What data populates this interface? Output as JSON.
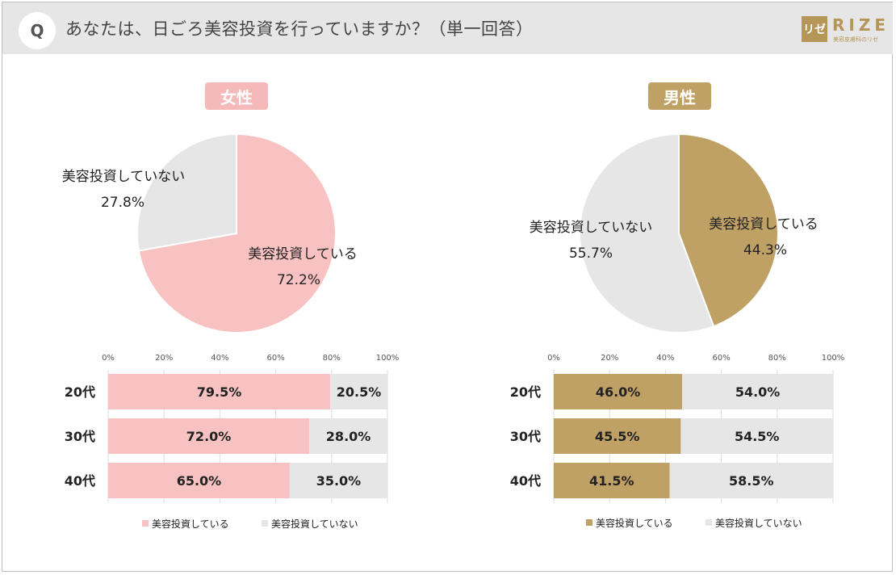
{
  "header": {
    "q_mark": "Q",
    "question": "あなたは、日ごろ美容投資を行っていますか？（単一回答）",
    "logo_mark": "リゼ",
    "logo_text": "RIZE",
    "logo_sub": "美容皮膚科のリゼ"
  },
  "colors": {
    "female_accent": "#f4b9b8",
    "female_pie": "#f7c2c1",
    "male_accent": "#bfa165",
    "not_investing": "#e6e6e6"
  },
  "chart_data": [
    {
      "id": "female_pie",
      "type": "pie",
      "title": "女性",
      "categories": [
        "美容投資している",
        "美容投資していない"
      ],
      "values": [
        72.2,
        27.8
      ],
      "value_labels": [
        "72.2%",
        "27.8%"
      ]
    },
    {
      "id": "male_pie",
      "type": "pie",
      "title": "男性",
      "categories": [
        "美容投資している",
        "美容投資していない"
      ],
      "values": [
        44.3,
        55.7
      ],
      "value_labels": [
        "44.3%",
        "55.7%"
      ]
    },
    {
      "id": "female_bar",
      "type": "bar",
      "stacked": true,
      "orientation": "horizontal",
      "categories": [
        "20代",
        "30代",
        "40代"
      ],
      "series": [
        {
          "name": "美容投資している",
          "values": [
            79.5,
            72.0,
            65.0
          ],
          "labels": [
            "79.5%",
            "72.0%",
            "65.0%"
          ]
        },
        {
          "name": "美容投資していない",
          "values": [
            20.5,
            28.0,
            35.0
          ],
          "labels": [
            "20.5%",
            "28.0%",
            "35.0%"
          ]
        }
      ],
      "ticks": [
        "0%",
        "20%",
        "40%",
        "60%",
        "80%",
        "100%"
      ],
      "xlim": [
        0,
        100
      ],
      "legend": [
        "美容投資している",
        "美容投資していない"
      ]
    },
    {
      "id": "male_bar",
      "type": "bar",
      "stacked": true,
      "orientation": "horizontal",
      "categories": [
        "20代",
        "30代",
        "40代"
      ],
      "series": [
        {
          "name": "美容投資している",
          "values": [
            46.0,
            45.5,
            41.5
          ],
          "labels": [
            "46.0%",
            "45.5%",
            "41.5%"
          ]
        },
        {
          "name": "美容投資していない",
          "values": [
            54.0,
            54.5,
            58.5
          ],
          "labels": [
            "54.0%",
            "54.5%",
            "58.5%"
          ]
        }
      ],
      "ticks": [
        "0%",
        "20%",
        "40%",
        "60%",
        "80%",
        "100%"
      ],
      "xlim": [
        0,
        100
      ],
      "legend": [
        "美容投資している",
        "美容投資していない"
      ]
    }
  ]
}
